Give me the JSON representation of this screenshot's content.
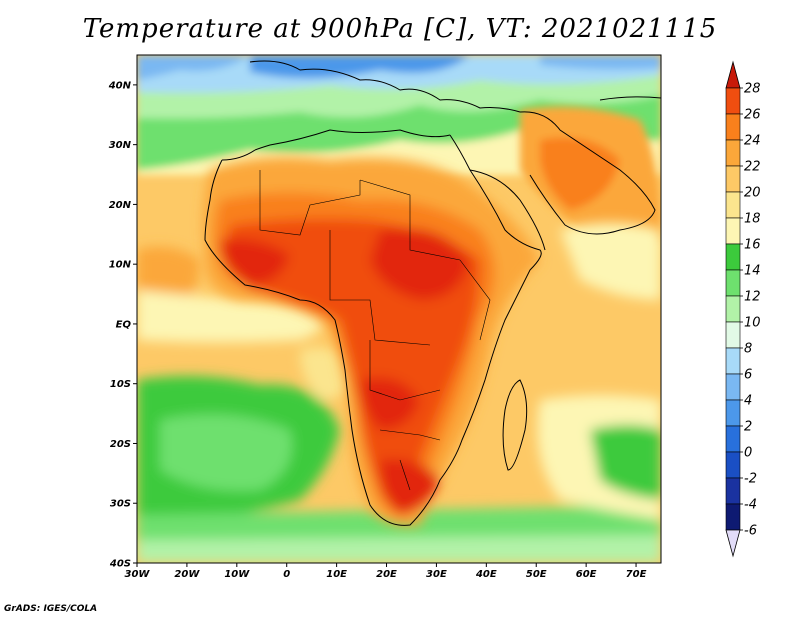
{
  "title": "Temperature at 900hPa [C], VT: 2021021115",
  "credit": "GrADS: IGES/COLA",
  "map": {
    "lon_range": [
      -30,
      75
    ],
    "lat_range": [
      -40,
      45
    ],
    "lon_ticks": [
      {
        "value": -30,
        "label": "30W"
      },
      {
        "value": -20,
        "label": "20W"
      },
      {
        "value": -10,
        "label": "10W"
      },
      {
        "value": 0,
        "label": "0"
      },
      {
        "value": 10,
        "label": "10E"
      },
      {
        "value": 20,
        "label": "20E"
      },
      {
        "value": 30,
        "label": "30E"
      },
      {
        "value": 40,
        "label": "40E"
      },
      {
        "value": 50,
        "label": "50E"
      },
      {
        "value": 60,
        "label": "60E"
      },
      {
        "value": 70,
        "label": "70E"
      }
    ],
    "lat_ticks": [
      {
        "value": 40,
        "label": "40N"
      },
      {
        "value": 30,
        "label": "30N"
      },
      {
        "value": 20,
        "label": "20N"
      },
      {
        "value": 10,
        "label": "10N"
      },
      {
        "value": 0,
        "label": "EQ"
      },
      {
        "value": -10,
        "label": "10S"
      },
      {
        "value": -20,
        "label": "20S"
      },
      {
        "value": -30,
        "label": "30S"
      },
      {
        "value": -40,
        "label": "40S"
      }
    ]
  },
  "colorbar": {
    "levels": [
      {
        "label": "28",
        "value": 28,
        "color": "#e2280c"
      },
      {
        "label": "26",
        "value": 26,
        "color": "#f04e10"
      },
      {
        "label": "24",
        "value": 24,
        "color": "#f9801c"
      },
      {
        "label": "22",
        "value": 22,
        "color": "#fba73a"
      },
      {
        "label": "20",
        "value": 20,
        "color": "#fdc966"
      },
      {
        "label": "18",
        "value": 18,
        "color": "#fbe58e"
      },
      {
        "label": "16",
        "value": 16,
        "color": "#fdf6b4"
      },
      {
        "label": "14",
        "value": 14,
        "color": "#3cca3c"
      },
      {
        "label": "12",
        "value": 12,
        "color": "#6ee06e"
      },
      {
        "label": "10",
        "value": 10,
        "color": "#b2f2a8"
      },
      {
        "label": "8",
        "value": 8,
        "color": "#e2fae6"
      },
      {
        "label": "6",
        "value": 6,
        "color": "#a8daf8"
      },
      {
        "label": "4",
        "value": 4,
        "color": "#7ab8f2"
      },
      {
        "label": "2",
        "value": 2,
        "color": "#4c98ea"
      },
      {
        "label": "0",
        "value": 0,
        "color": "#2870dc"
      },
      {
        "label": "-2",
        "value": -2,
        "color": "#1a4fc4"
      },
      {
        "label": "-4",
        "value": -4,
        "color": "#1a32a0"
      },
      {
        "label": "-6",
        "value": -6,
        "color": "#0e1a72"
      }
    ],
    "top_extend_color": "#c81a0a",
    "bottom_extend_color": "#e2dcf8"
  }
}
